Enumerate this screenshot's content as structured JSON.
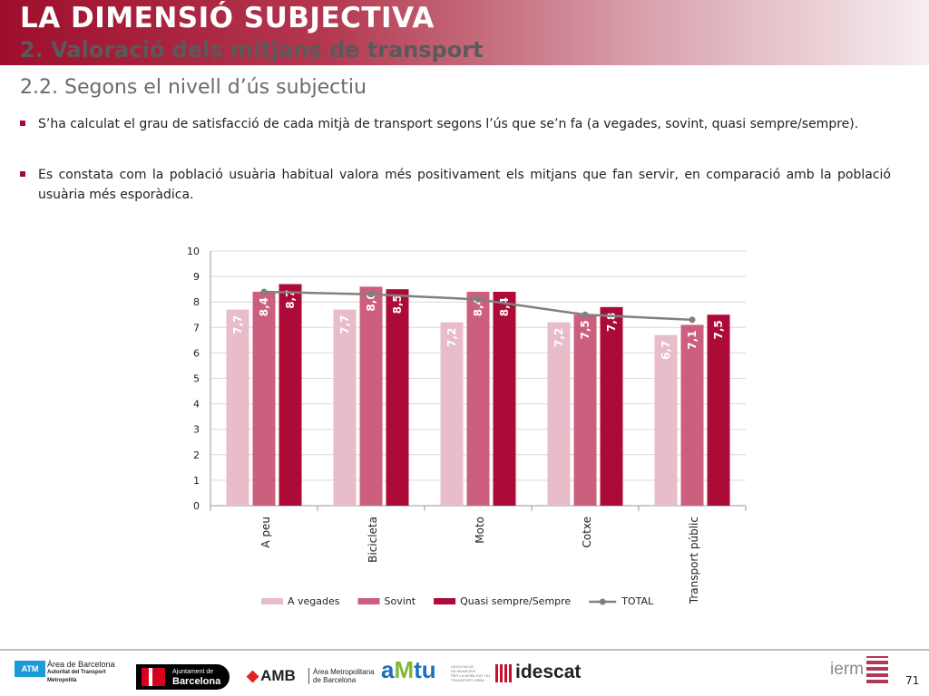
{
  "header": {
    "title": "LA DIMENSIÓ SUBJECTIVA",
    "subtitle": "2. Valoració dels mitjans de transport"
  },
  "section_heading": "2.2. Segons el nivell d’ús subjectiu",
  "bullets": [
    "S’ha calculat el grau de satisfacció de cada mitjà de transport segons l’ús que se’n fa (a vegades, sovint, quasi sempre/sempre).",
    "Es constata com la població usuària habitual valora més positivament els mitjans que fan servir, en comparació amb la població usuària més esporàdica."
  ],
  "chart_data": {
    "type": "bar",
    "categories": [
      "A peu",
      "Bicicleta",
      "Moto",
      "Cotxe",
      "Transport públic"
    ],
    "series": [
      {
        "name": "A vegades",
        "values": [
          7.7,
          7.7,
          7.2,
          7.2,
          6.7
        ],
        "labels": [
          "7,7",
          "7,7",
          "7,2",
          "7,2",
          "6,7"
        ],
        "color": "#e8bcc8"
      },
      {
        "name": "Sovint",
        "values": [
          8.4,
          8.6,
          8.4,
          7.5,
          7.1
        ],
        "labels": [
          "8,4",
          "8,6",
          "8,4",
          "7,5",
          "7,1"
        ],
        "color": "#cc5f7d"
      },
      {
        "name": "Quasi sempre/Sempre",
        "values": [
          8.7,
          8.5,
          8.4,
          7.8,
          7.5
        ],
        "labels": [
          "8,7",
          "8,5",
          "8,4",
          "7,8",
          "7,5"
        ],
        "color": "#ad0b37"
      }
    ],
    "line": {
      "name": "TOTAL",
      "values": [
        8.4,
        8.3,
        8.1,
        7.5,
        7.3
      ],
      "color": "#808080"
    },
    "yticks": [
      "0",
      "1",
      "2",
      "3",
      "4",
      "5",
      "6",
      "7",
      "8",
      "9",
      "10"
    ],
    "ylim": [
      0,
      10
    ],
    "grid": true,
    "legend_position": "bottom"
  },
  "footer": {
    "atm_badge": "ATM",
    "atm_line1": "Àrea de Barcelona",
    "atm_line2": "Autoritat del Transport",
    "atm_line3": "Metropolità",
    "bcn_line1": "Ajuntament de",
    "bcn_line2": "Barcelona",
    "amb": "AMB",
    "amb_line1": "Àrea Metropolitana",
    "amb_line2": "de Barcelona",
    "amtu_a": "a",
    "amtu_m": "M",
    "amtu_tu": "tu",
    "amtu_line1": "ASSOCIACIÓ",
    "amtu_line2": "DE MUNICIPIS",
    "amtu_line3": "PER LA MOBILITAT I EL",
    "amtu_line4": "TRANSPORT URBÀ",
    "idescat": "idescat",
    "ierm": "ierm"
  },
  "page_number": "71"
}
